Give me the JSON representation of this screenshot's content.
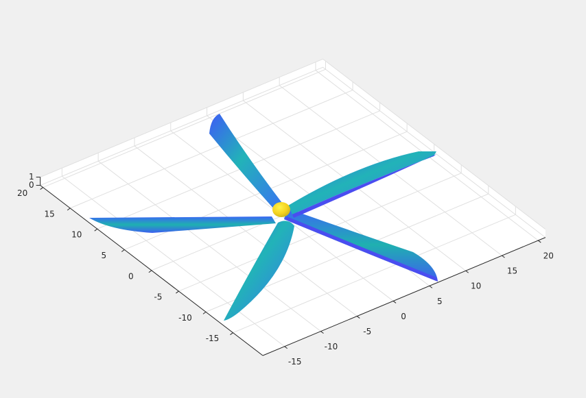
{
  "chart_data": {
    "type": "surface3d",
    "xlim": [
      -18,
      21
    ],
    "ylim": [
      -20.5,
      20.5
    ],
    "zlim": [
      0,
      1
    ],
    "xticks": [
      -15,
      -10,
      -5,
      0,
      5,
      10,
      15,
      20
    ],
    "yticks": [
      -15,
      -10,
      -5,
      0,
      5,
      10,
      15,
      20
    ],
    "zticks": [
      0,
      1
    ],
    "grid": true
  }
}
